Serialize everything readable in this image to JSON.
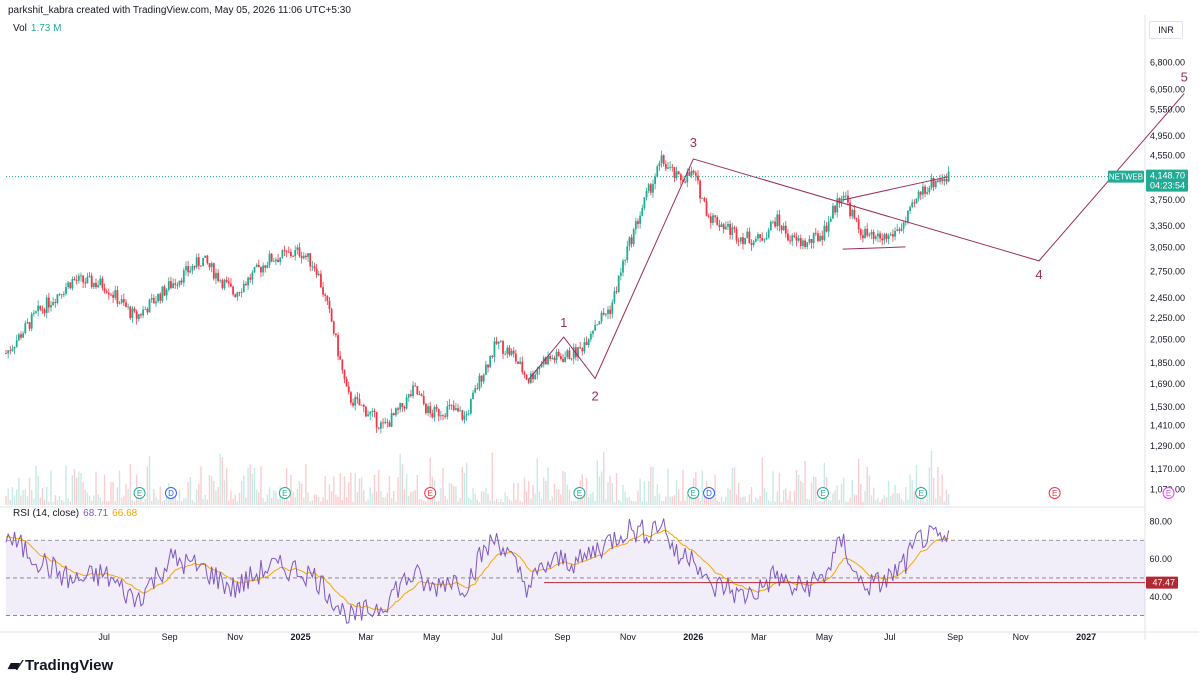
{
  "header": {
    "attribution": "parkshit_kabra created with TradingView.com, May 05, 2026 11:06 UTC+5:30",
    "currency": "INR",
    "volume_label": "Vol",
    "volume_value": "1.73 M"
  },
  "rsi": {
    "label": "RSI (14, close)",
    "value": "68.71",
    "ma_value": "66.68",
    "level_label": "47.47",
    "ticks": [
      "80.00",
      "60.00",
      "40.00"
    ]
  },
  "brand": {
    "name": "TradingView"
  },
  "colors": {
    "up": "#22ab94",
    "down": "#f23645",
    "wave": "#9c2c5d",
    "rsi": "#7e57c2",
    "rsi_ma": "#f7a600",
    "label_bg": "#22ab94"
  },
  "chart_data": {
    "type": "candlestick",
    "symbol": "NETWEB",
    "last_price": "4,148.70",
    "countdown": "04:23:54",
    "y_scale": "log",
    "ylim": [
      1000,
      7500
    ],
    "y_ticks": [
      "6,800.00",
      "6,050.00",
      "5,550.00",
      "4,950.00",
      "4,550.00",
      "3,750.00",
      "3,350.00",
      "3,050.00",
      "2,750.00",
      "2,450.00",
      "2,250.00",
      "2,050.00",
      "1,850.00",
      "1,690.00",
      "1,530.00",
      "1,410.00",
      "1,290.00",
      "1,170.00",
      "1,070.00"
    ],
    "x_ticks": [
      "Jul",
      "Sep",
      "Nov",
      "2025",
      "Mar",
      "May",
      "Jul",
      "Sep",
      "Nov",
      "2026",
      "Mar",
      "May",
      "Jul",
      "Sep",
      "Nov",
      "2027"
    ],
    "x_ticks_bold": [
      "2025",
      "2026",
      "2027"
    ],
    "price_path": [
      [
        2024.25,
        1930
      ],
      [
        2024.33,
        2300
      ],
      [
        2024.42,
        2650
      ],
      [
        2024.5,
        2600
      ],
      [
        2024.58,
        2250
      ],
      [
        2024.67,
        2600
      ],
      [
        2024.75,
        2900
      ],
      [
        2024.83,
        2500
      ],
      [
        2024.92,
        2900
      ],
      [
        2025.0,
        3000
      ],
      [
        2025.04,
        2800
      ],
      [
        2025.08,
        2200
      ],
      [
        2025.12,
        1600
      ],
      [
        2025.17,
        1500
      ],
      [
        2025.21,
        1400
      ],
      [
        2025.25,
        1500
      ],
      [
        2025.29,
        1650
      ],
      [
        2025.33,
        1480
      ],
      [
        2025.38,
        1520
      ],
      [
        2025.42,
        1460
      ],
      [
        2025.46,
        1750
      ],
      [
        2025.5,
        2020
      ],
      [
        2025.54,
        1920
      ],
      [
        2025.58,
        1720
      ],
      [
        2025.62,
        1880
      ],
      [
        2025.67,
        1900
      ],
      [
        2025.71,
        1950
      ],
      [
        2025.75,
        2200
      ],
      [
        2025.79,
        2350
      ],
      [
        2025.83,
        3000
      ],
      [
        2025.88,
        3800
      ],
      [
        2025.92,
        4450
      ],
      [
        2025.96,
        4100
      ],
      [
        2026.0,
        4200
      ],
      [
        2026.04,
        3500
      ],
      [
        2026.08,
        3350
      ],
      [
        2026.12,
        3200
      ],
      [
        2026.17,
        3150
      ],
      [
        2026.21,
        3450
      ],
      [
        2026.25,
        3150
      ],
      [
        2026.29,
        3100
      ],
      [
        2026.33,
        3250
      ],
      [
        2026.38,
        3900
      ],
      [
        2026.42,
        3300
      ],
      [
        2026.46,
        3150
      ],
      [
        2026.5,
        3200
      ],
      [
        2026.54,
        3400
      ],
      [
        2026.58,
        3900
      ],
      [
        2026.62,
        4100
      ],
      [
        2026.65,
        4148.7
      ]
    ],
    "wave_labels": [
      "1",
      "2",
      "3",
      "4",
      "5"
    ],
    "wave_points": [
      [
        2025.67,
        2070
      ],
      [
        2025.75,
        1730
      ],
      [
        2026.0,
        4480
      ],
      [
        2026.88,
        2880
      ],
      [
        2027.25,
        5950
      ]
    ],
    "rsi_level": 47.47,
    "rsi_ylim": [
      25,
      85
    ],
    "rsi_bands": [
      30,
      50,
      70
    ],
    "rsi_path": [
      [
        2024.25,
        72
      ],
      [
        2024.33,
        60
      ],
      [
        2024.42,
        48
      ],
      [
        2024.5,
        52
      ],
      [
        2024.58,
        38
      ],
      [
        2024.67,
        60
      ],
      [
        2024.75,
        55
      ],
      [
        2024.83,
        44
      ],
      [
        2024.92,
        56
      ],
      [
        2025.0,
        54
      ],
      [
        2025.04,
        50
      ],
      [
        2025.08,
        40
      ],
      [
        2025.12,
        28
      ],
      [
        2025.17,
        32
      ],
      [
        2025.21,
        36
      ],
      [
        2025.25,
        46
      ],
      [
        2025.29,
        52
      ],
      [
        2025.33,
        44
      ],
      [
        2025.38,
        50
      ],
      [
        2025.42,
        46
      ],
      [
        2025.46,
        62
      ],
      [
        2025.5,
        72
      ],
      [
        2025.54,
        58
      ],
      [
        2025.58,
        45
      ],
      [
        2025.62,
        56
      ],
      [
        2025.67,
        60
      ],
      [
        2025.71,
        58
      ],
      [
        2025.75,
        65
      ],
      [
        2025.79,
        70
      ],
      [
        2025.83,
        76
      ],
      [
        2025.88,
        74
      ],
      [
        2025.92,
        80
      ],
      [
        2025.96,
        60
      ],
      [
        2026.0,
        64
      ],
      [
        2026.04,
        44
      ],
      [
        2026.08,
        46
      ],
      [
        2026.12,
        40
      ],
      [
        2026.17,
        44
      ],
      [
        2026.21,
        52
      ],
      [
        2026.25,
        44
      ],
      [
        2026.29,
        46
      ],
      [
        2026.33,
        50
      ],
      [
        2026.38,
        70
      ],
      [
        2026.42,
        48
      ],
      [
        2026.46,
        46
      ],
      [
        2026.5,
        50
      ],
      [
        2026.54,
        58
      ],
      [
        2026.58,
        72
      ],
      [
        2026.62,
        70
      ],
      [
        2026.65,
        68.71
      ]
    ]
  }
}
